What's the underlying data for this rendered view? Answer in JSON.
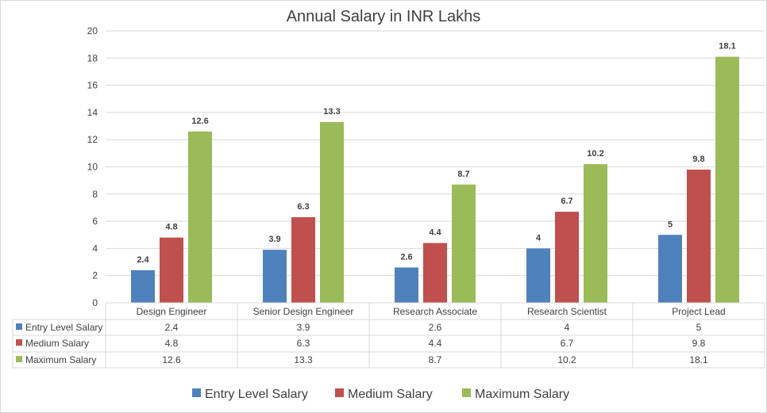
{
  "chart_data": {
    "type": "bar",
    "title": "Annual Salary in INR Lakhs",
    "xlabel": "",
    "ylabel": "",
    "ylim": [
      0,
      20
    ],
    "yticks": [
      0,
      2,
      4,
      6,
      8,
      10,
      12,
      14,
      16,
      18,
      20
    ],
    "grid": true,
    "legend_position": "bottom",
    "categories": [
      "Design Engineer",
      "Senior Design Engineer",
      "Research Associate",
      "Research Scientist",
      "Project Lead"
    ],
    "series": [
      {
        "name": "Entry Level Salary",
        "color": "#4f81bd",
        "values": [
          2.4,
          3.9,
          2.6,
          4,
          5
        ]
      },
      {
        "name": "Medium Salary",
        "color": "#c0504d",
        "values": [
          4.8,
          6.3,
          4.4,
          6.7,
          9.8
        ]
      },
      {
        "name": "Maximum Salary",
        "color": "#9bbb59",
        "values": [
          12.6,
          13.3,
          8.7,
          10.2,
          18.1
        ]
      }
    ],
    "data_table": true
  }
}
